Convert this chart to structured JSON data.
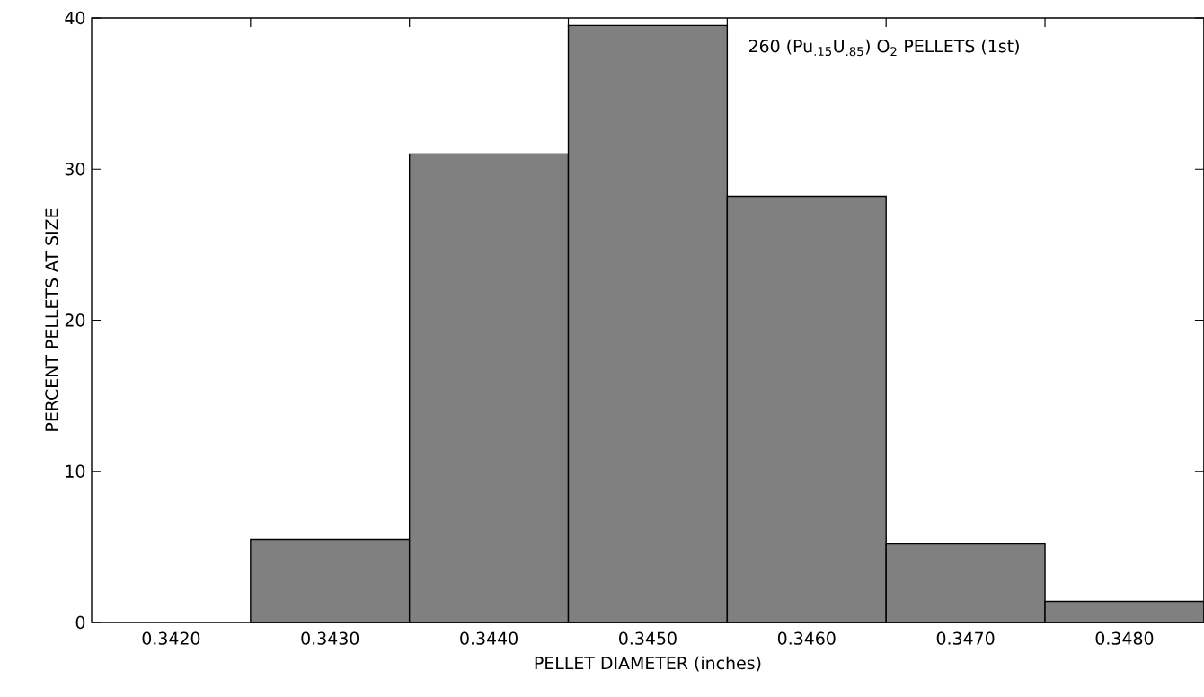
{
  "chart_data": {
    "type": "histogram",
    "xlabel": "PELLET DIAMETER (inches)",
    "ylabel": "PERCENT PELLETS AT SIZE",
    "annotations": [
      "260 (Pu$_{.15}$U$_{.85}$) O$_{2}$ PELLETS (1st)"
    ],
    "bins": [
      0.3425,
      0.3435,
      0.3445,
      0.3455,
      0.3465,
      0.3475,
      0.3485
    ],
    "values": [
      5.5,
      31,
      39.5,
      28.2,
      5.2,
      1.4
    ],
    "color": "#808080",
    "xlim": [
      0.3415,
      0.3485
    ],
    "ylim": [
      0,
      40
    ],
    "xticks": [
      {
        "value": 0.342,
        "label": "0.3420"
      },
      {
        "value": 0.343,
        "label": "0.3430"
      },
      {
        "value": 0.344,
        "label": "0.3440"
      },
      {
        "value": 0.345,
        "label": "0.3450"
      },
      {
        "value": 0.346,
        "label": "0.3460"
      },
      {
        "value": 0.347,
        "label": "0.3470"
      },
      {
        "value": 0.348,
        "label": "0.3480"
      }
    ],
    "yticks": [
      0,
      10,
      20,
      30,
      40
    ]
  }
}
